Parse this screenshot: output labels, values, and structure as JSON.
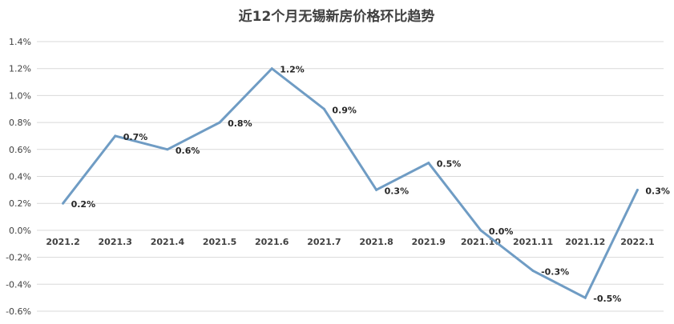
{
  "chart_data": {
    "type": "line",
    "title": "近12个月无锡新房价格环比趋势",
    "categories": [
      "2021.2",
      "2021.3",
      "2021.4",
      "2021.5",
      "2021.6",
      "2021.7",
      "2021.8",
      "2021.9",
      "2021.10",
      "2021.11",
      "2021.12",
      "2022.1"
    ],
    "series": [
      {
        "values": [
          0.2,
          0.7,
          0.6,
          0.8,
          1.2,
          0.9,
          0.3,
          0.5,
          0.0,
          -0.3,
          -0.5,
          0.3
        ],
        "labels": [
          "0.2%",
          "0.7%",
          "0.6%",
          "0.8%",
          "1.2%",
          "0.9%",
          "0.3%",
          "0.5%",
          "0.0%",
          "-0.3%",
          "-0.5%",
          "0.3%"
        ],
        "color": "#6f9cc4"
      }
    ],
    "ylim": [
      -0.6,
      1.4
    ],
    "yticks": [
      "-0.6%",
      "-0.4%",
      "-0.2%",
      "0.0%",
      "0.2%",
      "0.4%",
      "0.6%",
      "0.8%",
      "1.0%",
      "1.2%",
      "1.4%"
    ],
    "xlabel": "",
    "ylabel": "",
    "grid": true,
    "legend": "none"
  }
}
